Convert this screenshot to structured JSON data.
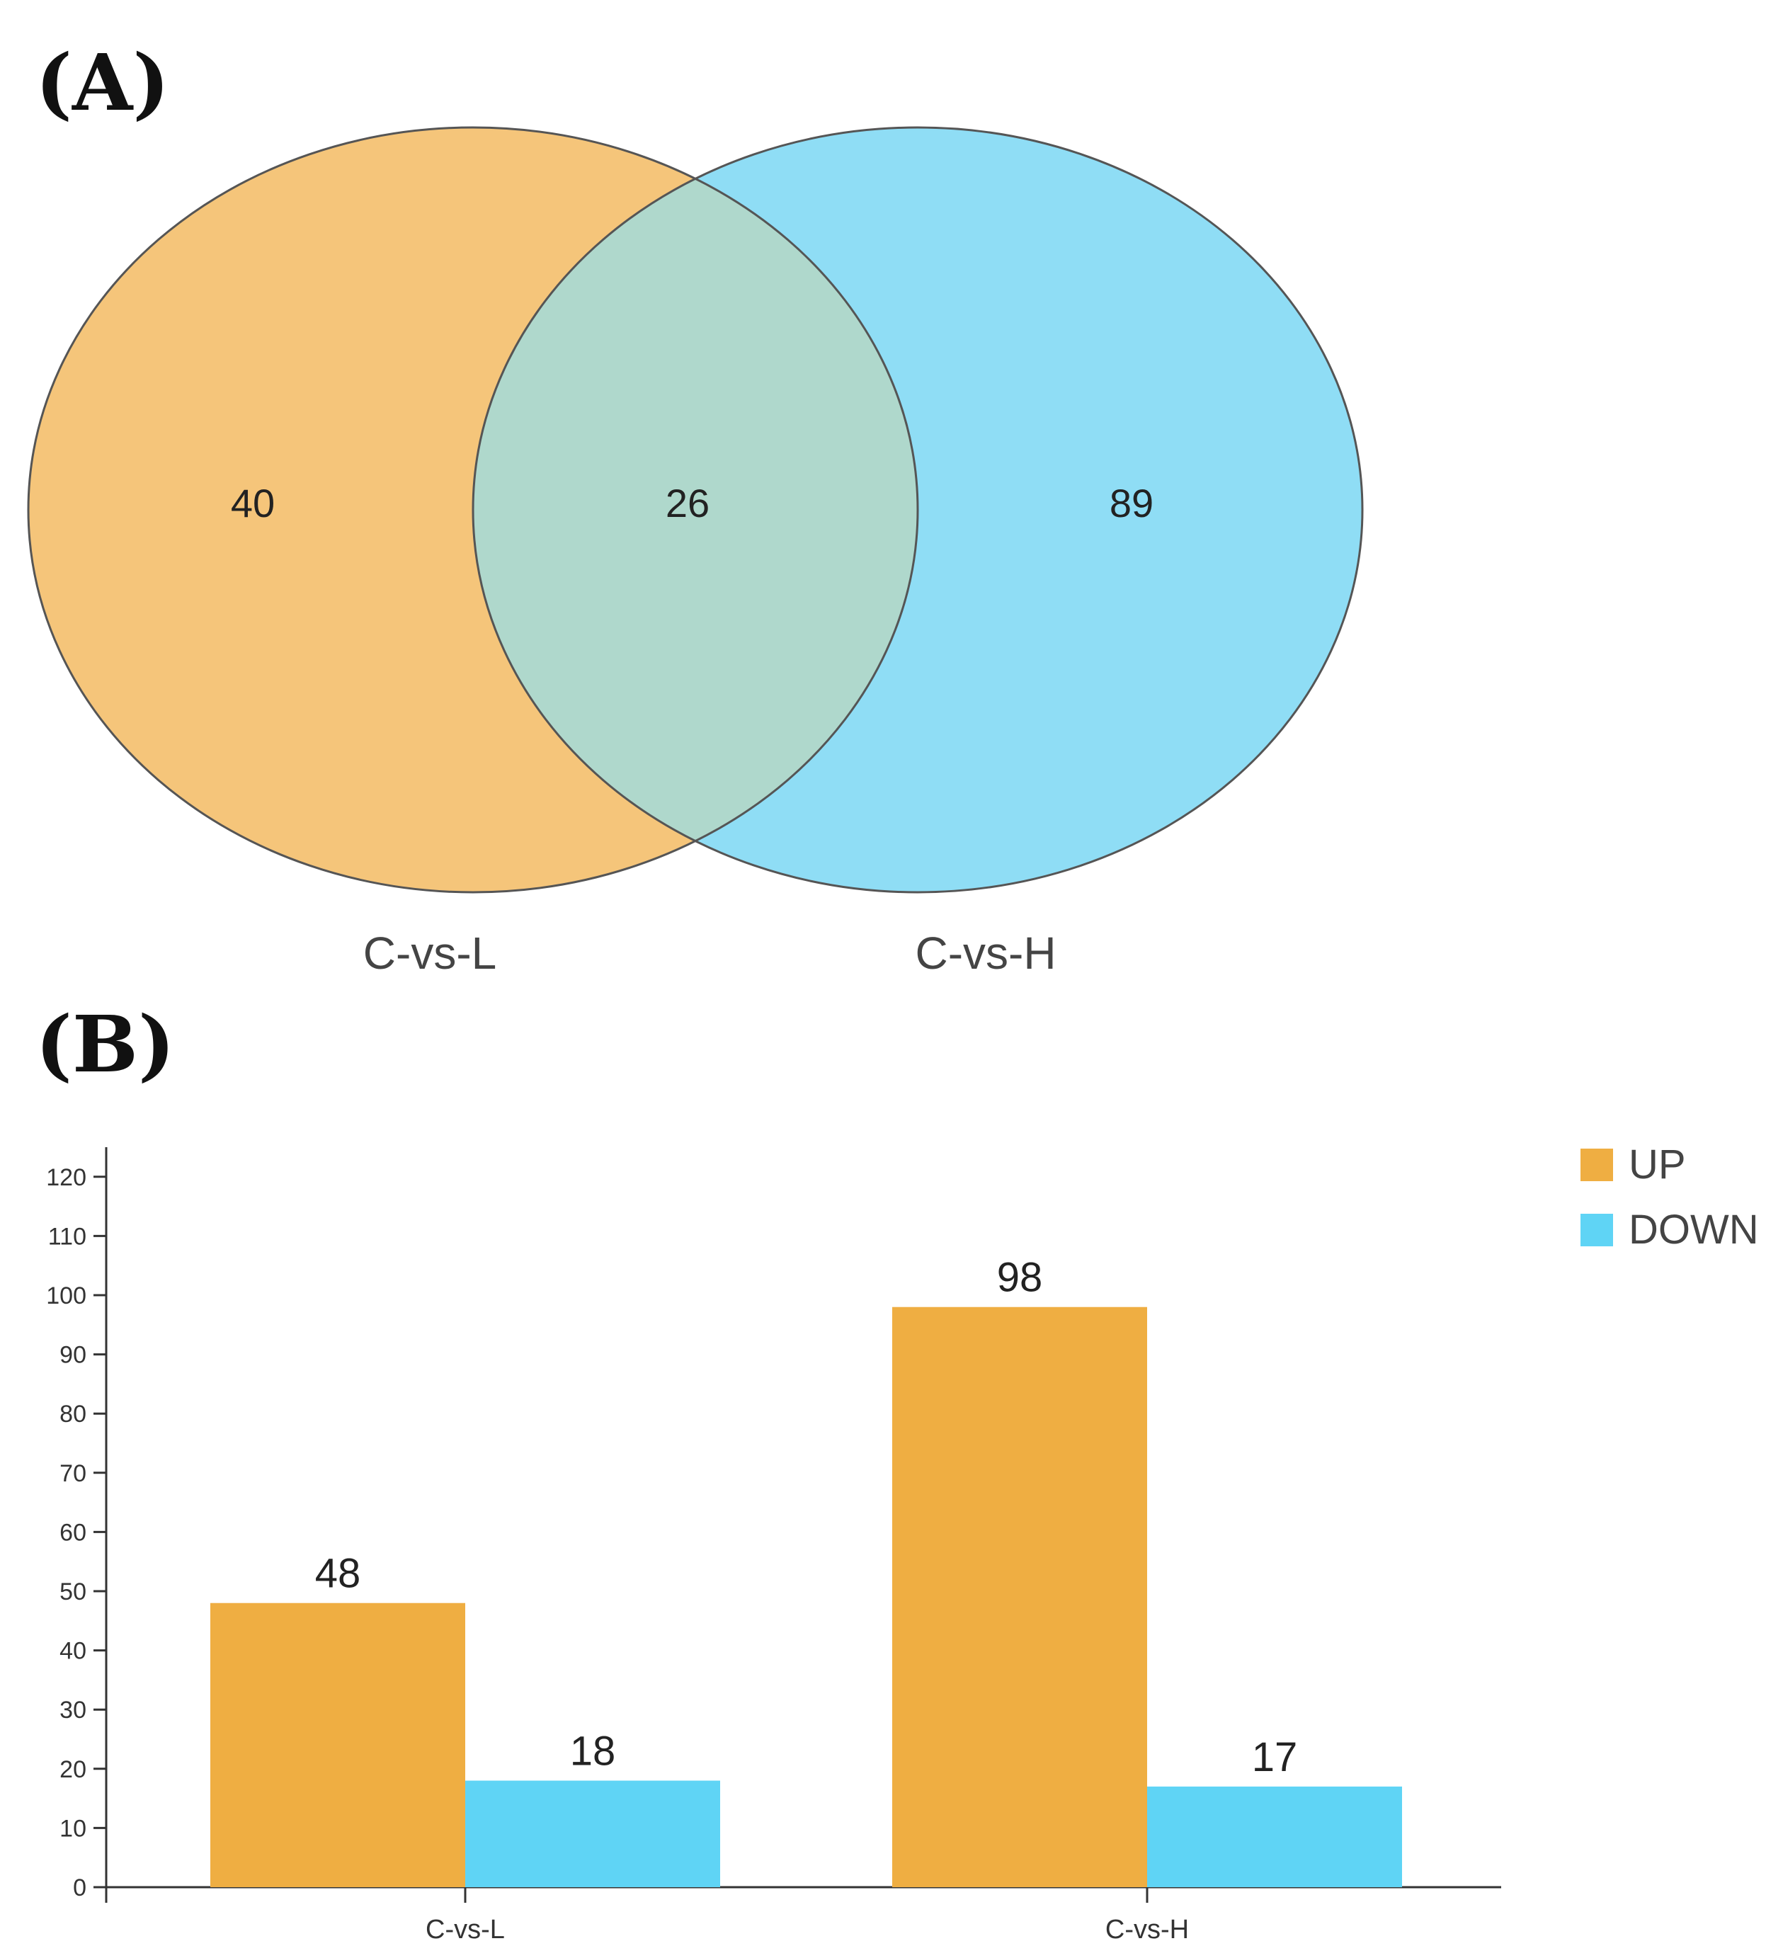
{
  "panels": {
    "a_label": "(A)",
    "b_label": "(B)"
  },
  "colors": {
    "up": "#EFAE42",
    "down": "#5FD4F5",
    "venn_left": "#F5C57A",
    "venn_right": "#8FDDF5",
    "venn_overlap": "#AFD8CC",
    "outline": "#555555"
  },
  "chart_data": [
    {
      "type": "venn",
      "sets": [
        "C-vs-L",
        "C-vs-H"
      ],
      "regions": {
        "only_left": 40,
        "both": 26,
        "only_right": 89
      }
    },
    {
      "type": "bar",
      "categories": [
        "C-vs-L",
        "C-vs-H"
      ],
      "series": [
        {
          "name": "UP",
          "values": [
            48,
            98
          ]
        },
        {
          "name": "DOWN",
          "values": [
            18,
            17
          ]
        }
      ],
      "ylim": [
        0,
        125
      ],
      "yticks": [
        0,
        10,
        20,
        30,
        40,
        50,
        60,
        70,
        80,
        90,
        100,
        110,
        120
      ],
      "legend": "top-right",
      "grid": false
    }
  ]
}
